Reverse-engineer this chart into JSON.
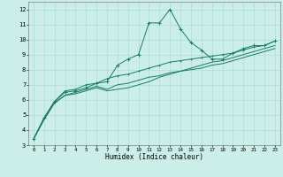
{
  "title": "",
  "xlabel": "Humidex (Indice chaleur)",
  "bg_color": "#cceee8",
  "grid_color": "#aadddd",
  "line_color": "#1a7a6a",
  "xlim": [
    -0.5,
    23.5
  ],
  "ylim": [
    3,
    12.5
  ],
  "xticks": [
    0,
    1,
    2,
    3,
    4,
    5,
    6,
    7,
    8,
    9,
    10,
    11,
    12,
    13,
    14,
    15,
    16,
    17,
    18,
    19,
    20,
    21,
    22,
    23
  ],
  "yticks": [
    3,
    4,
    5,
    6,
    7,
    8,
    9,
    10,
    11,
    12
  ],
  "series1_x": [
    0,
    1,
    2,
    3,
    4,
    5,
    6,
    7,
    8,
    9,
    10,
    11,
    12,
    13,
    14,
    15,
    16,
    17,
    18,
    19,
    20,
    21,
    22,
    23
  ],
  "series1_y": [
    3.4,
    4.8,
    5.9,
    6.5,
    6.6,
    6.8,
    7.1,
    7.2,
    8.3,
    8.7,
    9.0,
    11.1,
    11.1,
    12.0,
    10.7,
    9.8,
    9.3,
    8.7,
    8.7,
    9.1,
    9.4,
    9.6,
    9.6,
    9.9
  ],
  "series2_x": [
    0,
    1,
    2,
    3,
    4,
    5,
    6,
    7,
    8,
    9,
    10,
    11,
    12,
    13,
    14,
    15,
    16,
    17,
    18,
    19,
    20,
    21,
    22,
    23
  ],
  "series2_y": [
    3.4,
    4.8,
    5.9,
    6.6,
    6.7,
    7.0,
    7.1,
    7.4,
    7.6,
    7.7,
    7.9,
    8.1,
    8.3,
    8.5,
    8.6,
    8.7,
    8.8,
    8.9,
    9.0,
    9.1,
    9.3,
    9.5,
    9.6,
    9.9
  ],
  "series3_x": [
    0,
    1,
    2,
    3,
    4,
    5,
    6,
    7,
    8,
    9,
    10,
    11,
    12,
    13,
    14,
    15,
    16,
    17,
    18,
    19,
    20,
    21,
    22,
    23
  ],
  "series3_y": [
    3.4,
    4.7,
    5.8,
    6.3,
    6.5,
    6.7,
    6.9,
    6.7,
    7.0,
    7.1,
    7.3,
    7.5,
    7.6,
    7.8,
    7.9,
    8.0,
    8.1,
    8.3,
    8.4,
    8.6,
    8.8,
    9.0,
    9.2,
    9.4
  ],
  "series4_x": [
    0,
    1,
    2,
    3,
    4,
    5,
    6,
    7,
    8,
    9,
    10,
    11,
    12,
    13,
    14,
    15,
    16,
    17,
    18,
    19,
    20,
    21,
    22,
    23
  ],
  "series4_y": [
    3.4,
    4.7,
    5.8,
    6.3,
    6.4,
    6.6,
    6.8,
    6.6,
    6.7,
    6.8,
    7.0,
    7.2,
    7.5,
    7.7,
    7.9,
    8.1,
    8.3,
    8.5,
    8.6,
    8.8,
    9.0,
    9.2,
    9.4,
    9.6
  ]
}
